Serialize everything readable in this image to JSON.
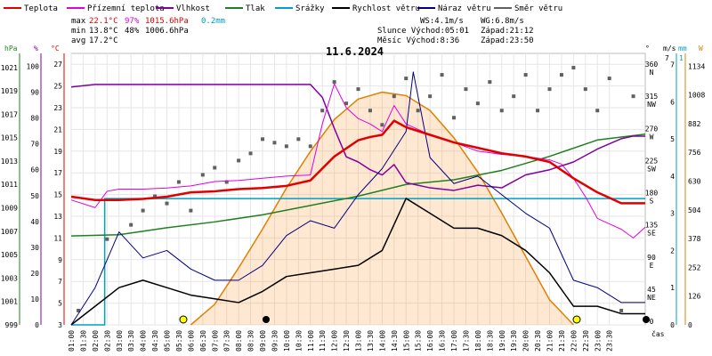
{
  "chart_data": {
    "type": "line",
    "title": "11.6.2024",
    "xlabel": "čas",
    "legend": [
      {
        "label": "Teplota",
        "color": "#e00000"
      },
      {
        "label": "Přízemní teplota",
        "color": "#e000e0"
      },
      {
        "label": "Vlhkost",
        "color": "#8000a0"
      },
      {
        "label": "Tlak",
        "color": "#208020"
      },
      {
        "label": "Srážky",
        "color": "#00a0c0"
      },
      {
        "label": "Rychlost větru",
        "color": "#000000"
      },
      {
        "label": "Náraz větru",
        "color": "#000080"
      },
      {
        "label": "Směr větru",
        "color": "#606060"
      }
    ],
    "stats": {
      "max_label": "max",
      "min_label": "min",
      "avg_label": "avg",
      "max_temp": "22.1°C",
      "max_hum": "97%",
      "max_press": "1015.6hPa",
      "max_rain": "0.2mm",
      "min_temp": "13.8°C",
      "min_hum": "48%",
      "min_press": "1006.6hPa",
      "avg_temp": "17.2°C",
      "ws": "WS:4.1m/s",
      "wg": "WG:6.8m/s",
      "sun_rise": "Slunce Východ:05:01",
      "sun_set": "Západ:21:12",
      "moon_rise": "Měsíc  Východ:8:36",
      "moon_set": "Západ:23:50"
    },
    "axes": {
      "hpa": {
        "unit": "hPa",
        "ticks": [
          "1021",
          "1019",
          "1017",
          "1015",
          "1013",
          "1011",
          "1009",
          "1007",
          "1005",
          "1003",
          "1001",
          "999"
        ]
      },
      "pct": {
        "unit": "%",
        "ticks": [
          "100",
          "90",
          "80",
          "70",
          "60",
          "50",
          "40",
          "30",
          "20",
          "10",
          "0"
        ]
      },
      "temp": {
        "unit": "°C",
        "ticks": [
          "27",
          "25",
          "23",
          "21",
          "19",
          "17",
          "15",
          "13",
          "11",
          "9",
          "7",
          "5",
          "3"
        ]
      },
      "deg": {
        "unit": "°",
        "ticks": [
          "360",
          "315",
          "270",
          "225",
          "180",
          "135",
          "90",
          "45",
          "0"
        ],
        "dirs": [
          "N",
          "NW",
          "W",
          "SW",
          "S",
          "SE",
          "E",
          "NE",
          ""
        ]
      },
      "ms": {
        "unit": "m/s",
        "top": "7",
        "ticks": [
          "7",
          "6",
          "5",
          "4",
          "3",
          "2",
          "1",
          "0"
        ]
      },
      "mm": {
        "unit": "mm",
        "top": "1"
      },
      "wm": {
        "unit": "W",
        "ticks": [
          "1134",
          "1008",
          "882",
          "756",
          "630",
          "504",
          "378",
          "252",
          "126",
          "0"
        ]
      }
    },
    "x_ticks": [
      "01:00",
      "01:30",
      "02:00",
      "02:30",
      "03:00",
      "03:30",
      "04:00",
      "04:30",
      "05:00",
      "05:30",
      "06:00",
      "06:30",
      "07:00",
      "07:30",
      "08:00",
      "08:30",
      "09:00",
      "09:30",
      "10:00",
      "10:30",
      "11:00",
      "11:30",
      "12:00",
      "12:30",
      "13:00",
      "13:30",
      "14:00",
      "14:30",
      "15:00",
      "15:30",
      "16:00",
      "16:30",
      "17:00",
      "17:30",
      "18:00",
      "18:30",
      "19:00",
      "19:30",
      "20:00",
      "20:30",
      "21:00",
      "21:30",
      "22:00",
      "22:30",
      "23:00",
      "23:30"
    ],
    "temperature": {
      "x": [
        0,
        1,
        2,
        3,
        4,
        5,
        6,
        7,
        8,
        9,
        10,
        11,
        12,
        12.5,
        13,
        13.5,
        14,
        15,
        16,
        17,
        18,
        19,
        20,
        21,
        22,
        23,
        24
      ],
      "y": [
        14.8,
        14.5,
        14.5,
        14.6,
        14.8,
        15.2,
        15.3,
        15.5,
        15.6,
        15.8,
        16.3,
        18.5,
        20.0,
        20.3,
        20.5,
        21.8,
        21.2,
        20.5,
        19.8,
        19.3,
        18.8,
        18.5,
        18.0,
        16.5,
        15.2,
        14.2,
        14.2
      ]
    },
    "ground_temperature": {
      "x": [
        0,
        1,
        1.5,
        2,
        3,
        4,
        5,
        6,
        7,
        8,
        9,
        10,
        10.5,
        11,
        11.5,
        12,
        12.5,
        13,
        13.5,
        14,
        15,
        16,
        17,
        18,
        19,
        20,
        20.5,
        21,
        21.5,
        22,
        23,
        23.5,
        24
      ],
      "y": [
        14.5,
        13.8,
        15.3,
        15.5,
        15.5,
        15.6,
        15.8,
        16.2,
        16.3,
        16.5,
        16.7,
        16.8,
        21.5,
        25.2,
        23.0,
        22.0,
        21.5,
        20.8,
        23.2,
        21.5,
        20.5,
        19.8,
        19.0,
        18.7,
        18.5,
        18.2,
        17.8,
        16.5,
        14.8,
        12.8,
        11.8,
        11.0,
        12.0
      ]
    },
    "humidity": {
      "x": [
        0,
        1,
        2,
        3,
        4,
        5,
        6,
        7,
        8,
        9,
        10,
        10.5,
        11,
        11.5,
        12,
        12.5,
        13,
        13.5,
        14,
        15,
        16,
        17,
        18,
        19,
        20,
        21,
        22,
        23,
        23.5,
        24
      ],
      "y": [
        92,
        93,
        93,
        93,
        93,
        93,
        93,
        93,
        93,
        93,
        93,
        88,
        76,
        65,
        63,
        60,
        58,
        62,
        55,
        53,
        52,
        54,
        53,
        58,
        60,
        63,
        68,
        72,
        73,
        73
      ]
    },
    "pressure": {
      "x": [
        0,
        2,
        4,
        6,
        8,
        10,
        12,
        14,
        16,
        18,
        20,
        22,
        24
      ],
      "y": [
        1006.6,
        1006.7,
        1007.3,
        1007.8,
        1008.4,
        1009.2,
        1010.0,
        1011.0,
        1011.4,
        1012.2,
        1013.4,
        1014.8,
        1015.3
      ]
    },
    "rain": {
      "x": [
        0,
        1.4,
        1.4,
        24
      ],
      "y": [
        0,
        0,
        0.2,
        0.2
      ]
    },
    "wind_speed_ms": {
      "x": [
        0,
        1,
        2,
        3,
        4,
        5,
        6,
        7,
        8,
        9,
        10,
        11,
        12,
        13,
        14,
        15,
        16,
        17,
        18,
        19,
        20,
        21,
        22,
        23,
        24
      ],
      "y": [
        0,
        0.5,
        1.0,
        1.2,
        1.0,
        0.8,
        0.7,
        0.6,
        0.9,
        1.3,
        1.4,
        1.5,
        1.6,
        2.0,
        3.4,
        3.0,
        2.6,
        2.6,
        2.4,
        2.0,
        1.4,
        0.5,
        0.5,
        0.3,
        0.3
      ]
    },
    "wind_gust_ms": {
      "x": [
        0,
        1,
        2,
        3,
        4,
        5,
        6,
        7,
        8,
        9,
        10,
        11,
        12,
        13,
        14,
        14.3,
        15,
        16,
        17,
        18,
        19,
        20,
        21,
        22,
        23,
        24
      ],
      "y": [
        0,
        1.0,
        2.5,
        1.8,
        2.0,
        1.5,
        1.2,
        1.2,
        1.6,
        2.4,
        2.8,
        2.6,
        3.5,
        4.2,
        5.2,
        6.8,
        4.5,
        3.8,
        4.0,
        3.5,
        3.0,
        2.6,
        1.2,
        1.0,
        0.6,
        0.6
      ]
    },
    "solar_radiation_wm2": {
      "x": [
        5,
        6,
        7,
        8,
        9,
        10,
        11,
        12,
        13,
        14,
        15,
        16,
        17,
        18,
        19,
        20,
        21
      ],
      "y": [
        0,
        90,
        250,
        420,
        600,
        760,
        900,
        990,
        1020,
        1005,
        940,
        820,
        670,
        490,
        300,
        110,
        0
      ]
    },
    "wind_direction_deg": {
      "x": [
        0.3,
        1.5,
        2.5,
        3,
        3.5,
        4,
        4.5,
        5,
        5.5,
        6,
        6.5,
        7,
        7.5,
        8,
        8.5,
        9,
        9.5,
        10,
        10.5,
        11,
        11.5,
        12,
        12.5,
        13,
        13.5,
        14,
        14.5,
        15,
        15.5,
        16,
        16.5,
        17,
        17.5,
        18,
        18.5,
        19,
        19.5,
        20,
        20.5,
        21,
        21.5,
        22,
        22.5,
        23,
        23.5
      ],
      "y": [
        20,
        120,
        140,
        160,
        180,
        170,
        200,
        160,
        210,
        220,
        200,
        230,
        240,
        260,
        255,
        250,
        260,
        250,
        300,
        340,
        310,
        330,
        300,
        280,
        320,
        345,
        300,
        320,
        350,
        290,
        330,
        310,
        340,
        300,
        320,
        350,
        300,
        330,
        350,
        360,
        330,
        300,
        345,
        20,
        320
      ]
    }
  }
}
